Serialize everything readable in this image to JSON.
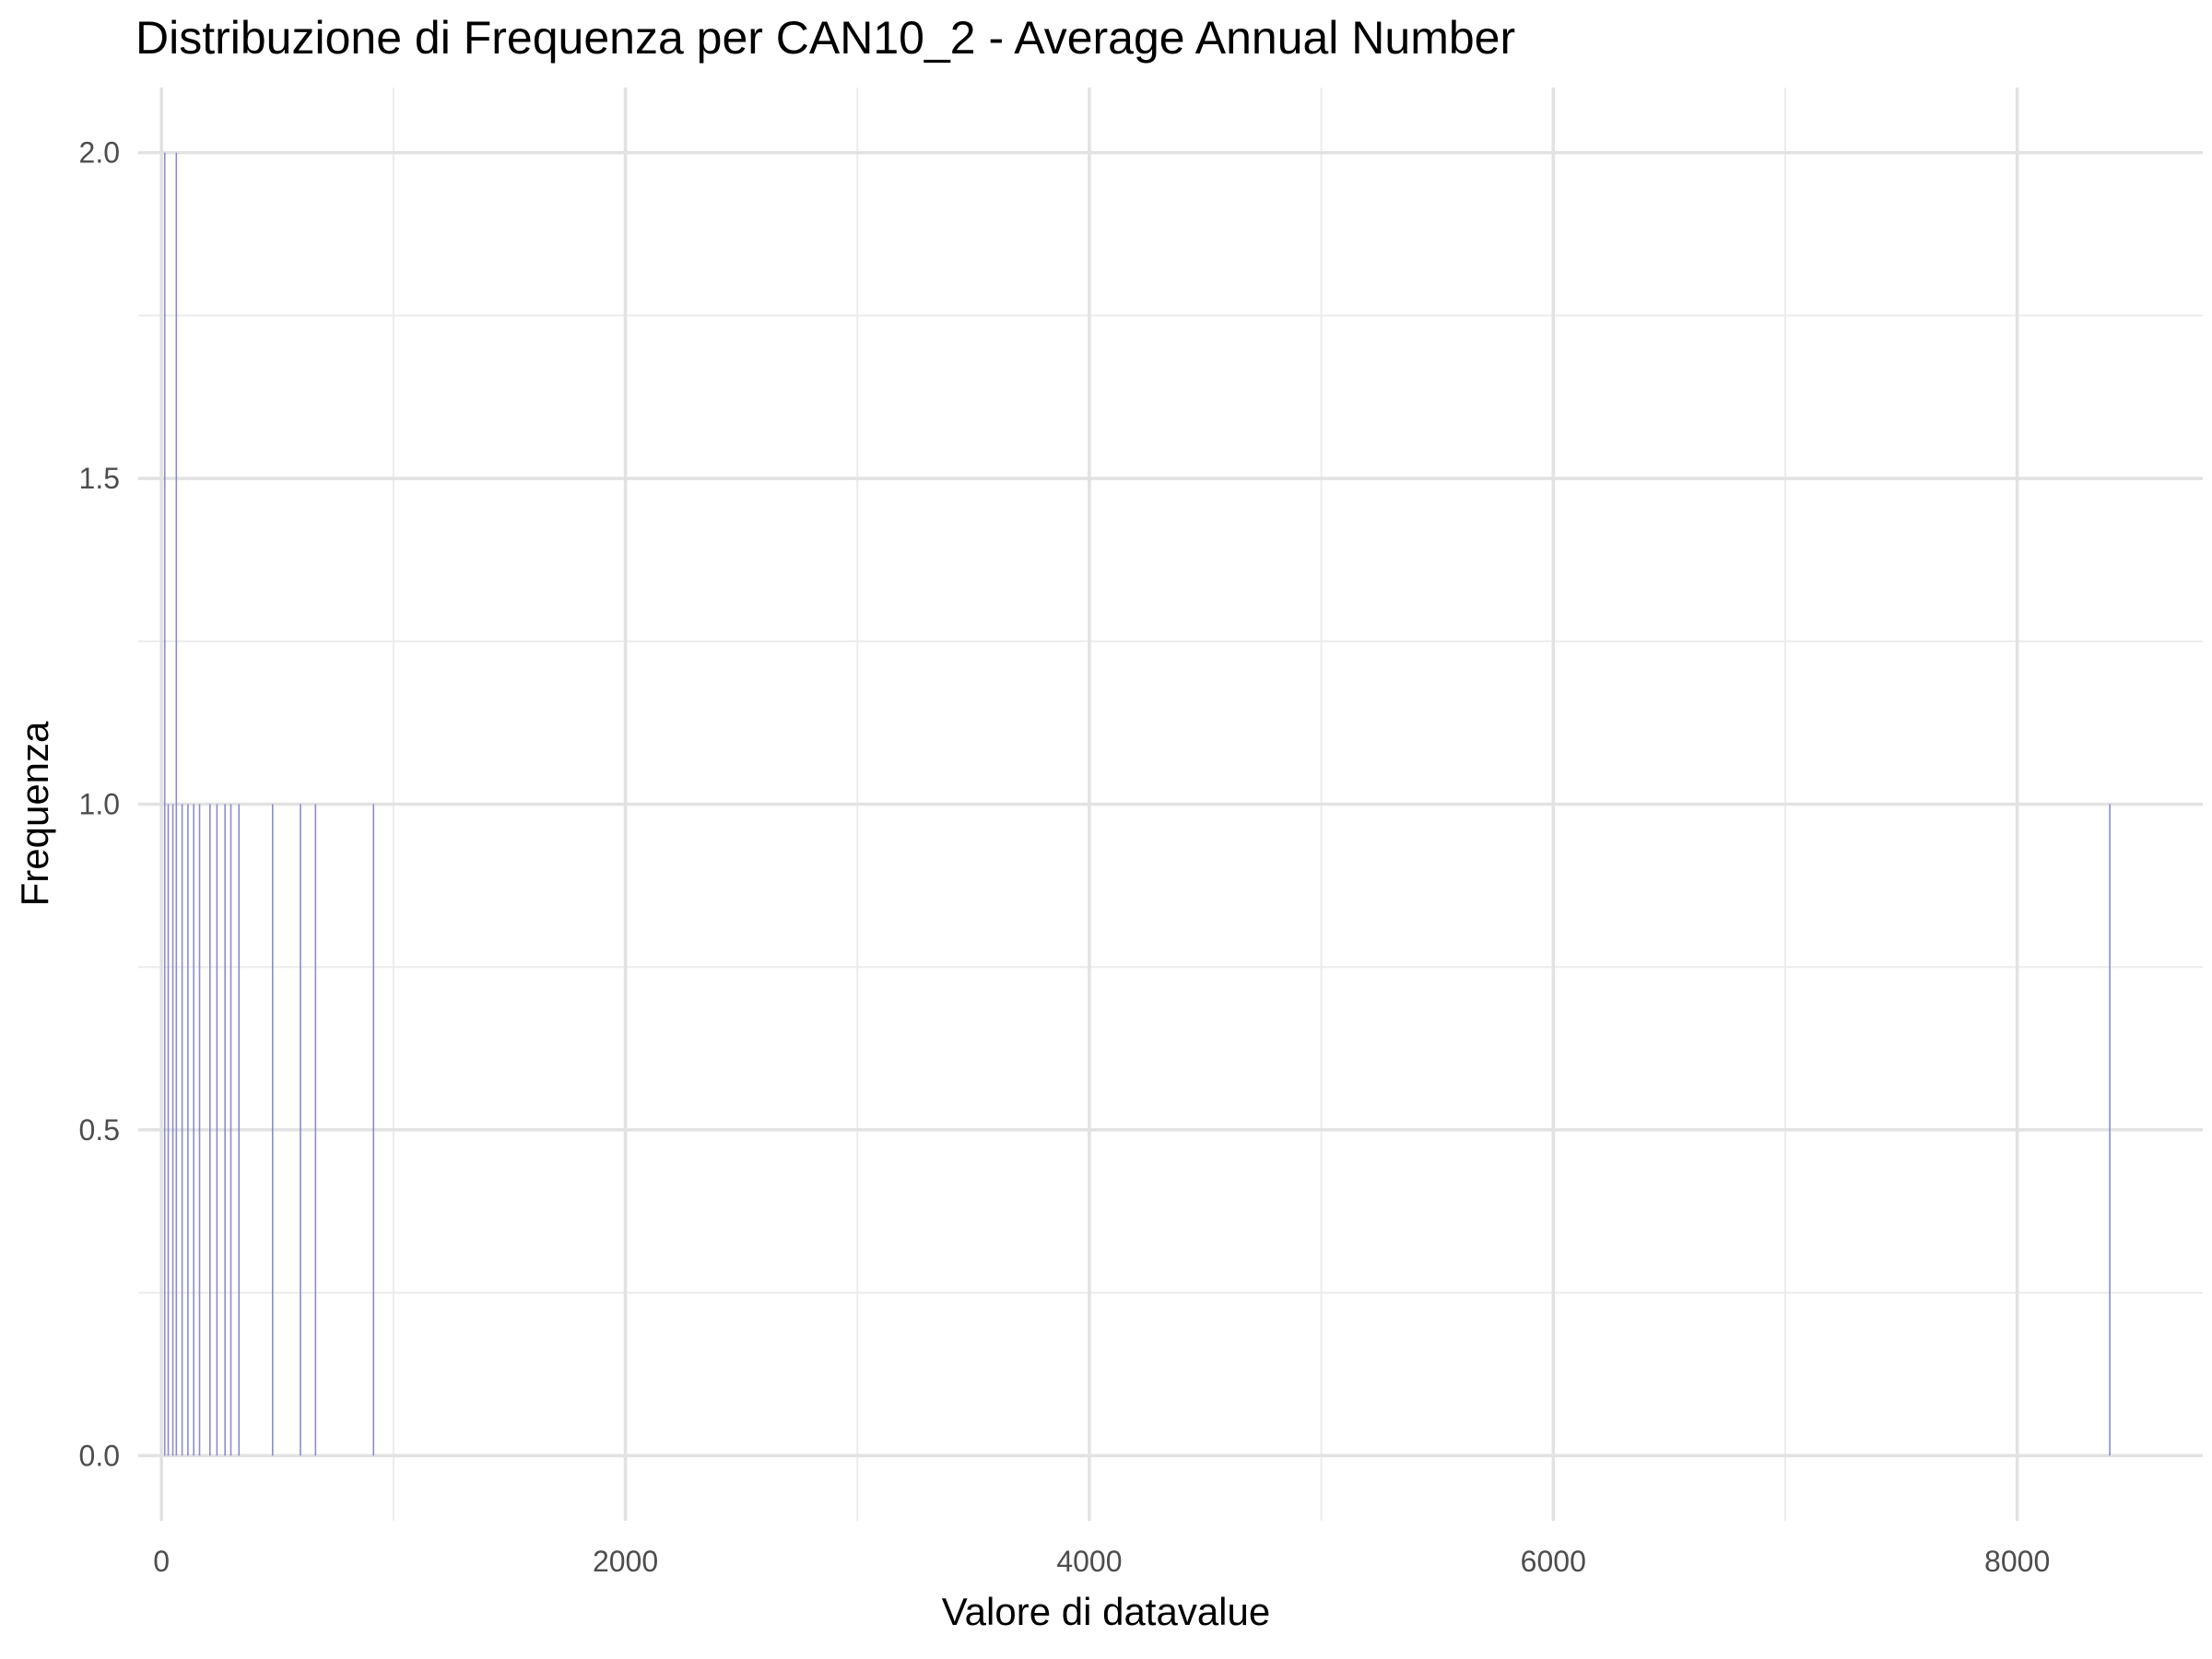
{
  "chart_data": {
    "type": "bar",
    "title": "Distribuzione di Frequenza per CAN10_2 - Average Annual Number",
    "xlabel": "Valore di datavalue",
    "ylabel": "Frequenza",
    "xlim": [
      -100,
      8800
    ],
    "ylim": [
      -0.1,
      2.1
    ],
    "x_ticks": [
      0,
      2000,
      4000,
      6000,
      8000
    ],
    "y_ticks": [
      0.0,
      0.5,
      1.0,
      1.5,
      2.0
    ],
    "x_tick_labels": [
      "0",
      "2000",
      "4000",
      "6000",
      "8000"
    ],
    "y_tick_labels": [
      "0.0",
      "0.5",
      "1.0",
      "1.5",
      "2.0"
    ],
    "grid": true,
    "bar_color": "#8080c8",
    "bins": [
      {
        "x": 15,
        "count": 2
      },
      {
        "x": 30,
        "count": 1
      },
      {
        "x": 50,
        "count": 1
      },
      {
        "x": 65,
        "count": 2
      },
      {
        "x": 90,
        "count": 1
      },
      {
        "x": 115,
        "count": 1
      },
      {
        "x": 140,
        "count": 1
      },
      {
        "x": 165,
        "count": 1
      },
      {
        "x": 210,
        "count": 1
      },
      {
        "x": 240,
        "count": 1
      },
      {
        "x": 275,
        "count": 1
      },
      {
        "x": 300,
        "count": 1
      },
      {
        "x": 335,
        "count": 1
      },
      {
        "x": 480,
        "count": 1
      },
      {
        "x": 600,
        "count": 1
      },
      {
        "x": 665,
        "count": 1
      },
      {
        "x": 915,
        "count": 1
      },
      {
        "x": 8400,
        "count": 1
      }
    ]
  }
}
